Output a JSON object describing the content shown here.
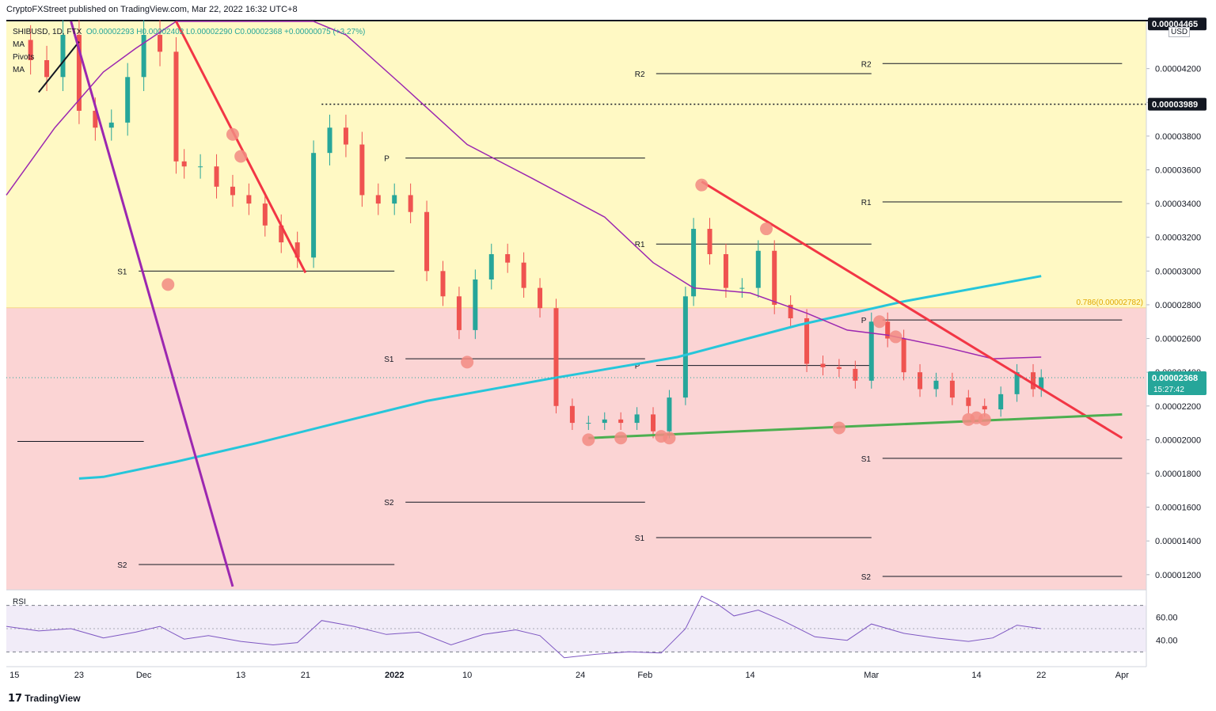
{
  "header": {
    "publisher": "CryptoFXStreet published on TradingView.com, Mar 22, 2022 16:32 UTC+8"
  },
  "legend": {
    "symbol": "SHIBUSD, 1D, FTX",
    "ohlc": "O0.00002293  H0.00002402  L0.00002290  C0.00002368  +0.00000075 (+3.27%)",
    "indicators": [
      "MA",
      "Pivots",
      "MA"
    ]
  },
  "currency": "USD",
  "rsi_label": "RSI",
  "brand": {
    "logo": "17",
    "name": "TradingView"
  },
  "colors": {
    "up": "#26a69a",
    "down": "#ef5350",
    "ma_short": "#9c27b0",
    "ma_long": "#26c6da",
    "trendline": "#f23645",
    "support": "#4caf50",
    "zone_upper": "#fff9c4",
    "zone_lower": "#fbd4d4"
  },
  "chart_data": {
    "type": "candlestick",
    "ylim": [
      1.11e-05,
      4.48e-05
    ],
    "y_ticks": [
      "0.00001200",
      "0.00001400",
      "0.00001600",
      "0.00001800",
      "0.00002000",
      "0.00002200",
      "0.00002400",
      "0.00002600",
      "0.00002800",
      "0.00003000",
      "0.00003200",
      "0.00003400",
      "0.00003600",
      "0.00003800",
      "0.00004000",
      "0.00004200"
    ],
    "x_ticks": [
      "15",
      "23",
      "Dec",
      "13",
      "21",
      "2022",
      "10",
      "24",
      "Feb",
      "14",
      "Mar",
      "14",
      "22",
      "Apr"
    ],
    "price_labels": [
      {
        "text": "0.00003989",
        "value": 3.989e-05,
        "style": "dark"
      },
      {
        "text": "0.00002368",
        "value": 2.368e-05,
        "style": "green",
        "countdown": "15:27:42"
      },
      {
        "text": "0.00004465",
        "value": 4.465e-05,
        "style": "dark"
      }
    ],
    "fib_label": "0.786(0.00002782)",
    "fib_value": 2.782e-05,
    "close_points": [
      [
        "2021-11-15",
        4.37e-05
      ],
      [
        "2021-11-17",
        4.25e-05
      ],
      [
        "2021-11-19",
        4.15e-05
      ],
      [
        "2021-11-21",
        4.4e-05
      ],
      [
        "2021-11-23",
        3.95e-05
      ],
      [
        "2021-11-25",
        3.85e-05
      ],
      [
        "2021-11-27",
        3.88e-05
      ],
      [
        "2021-11-29",
        4.15e-05
      ],
      [
        "2021-12-01",
        4.4e-05
      ],
      [
        "2021-12-03",
        4.3e-05
      ],
      [
        "2021-12-05",
        3.65e-05
      ],
      [
        "2021-12-06",
        3.62e-05
      ],
      [
        "2021-12-08",
        3.62e-05
      ],
      [
        "2021-12-10",
        3.5e-05
      ],
      [
        "2021-12-12",
        3.45e-05
      ],
      [
        "2021-12-14",
        3.4e-05
      ],
      [
        "2021-12-16",
        3.27e-05
      ],
      [
        "2021-12-18",
        3.17e-05
      ],
      [
        "2021-12-20",
        3.08e-05
      ],
      [
        "2021-12-22",
        3.7e-05
      ],
      [
        "2021-12-24",
        3.85e-05
      ],
      [
        "2021-12-26",
        3.75e-05
      ],
      [
        "2021-12-28",
        3.45e-05
      ],
      [
        "2021-12-30",
        3.4e-05
      ],
      [
        "2022-01-01",
        3.45e-05
      ],
      [
        "2022-01-03",
        3.35e-05
      ],
      [
        "2022-01-05",
        3e-05
      ],
      [
        "2022-01-07",
        2.85e-05
      ],
      [
        "2022-01-09",
        2.65e-05
      ],
      [
        "2022-01-11",
        2.95e-05
      ],
      [
        "2022-01-13",
        3.1e-05
      ],
      [
        "2022-01-15",
        3.05e-05
      ],
      [
        "2022-01-17",
        2.9e-05
      ],
      [
        "2022-01-19",
        2.78e-05
      ],
      [
        "2022-01-21",
        2.2e-05
      ],
      [
        "2022-01-23",
        2.1e-05
      ],
      [
        "2022-01-25",
        2.1e-05
      ],
      [
        "2022-01-27",
        2.12e-05
      ],
      [
        "2022-01-29",
        2.1e-05
      ],
      [
        "2022-01-31",
        2.15e-05
      ],
      [
        "2022-02-02",
        2.05e-05
      ],
      [
        "2022-02-04",
        2.25e-05
      ],
      [
        "2022-02-06",
        2.85e-05
      ],
      [
        "2022-02-07",
        3.25e-05
      ],
      [
        "2022-02-09",
        3.1e-05
      ],
      [
        "2022-02-11",
        2.9e-05
      ],
      [
        "2022-02-13",
        2.9e-05
      ],
      [
        "2022-02-15",
        3.12e-05
      ],
      [
        "2022-02-17",
        2.8e-05
      ],
      [
        "2022-02-19",
        2.72e-05
      ],
      [
        "2022-02-21",
        2.45e-05
      ],
      [
        "2022-02-23",
        2.43e-05
      ],
      [
        "2022-02-25",
        2.42e-05
      ],
      [
        "2022-02-27",
        2.35e-05
      ],
      [
        "2022-03-01",
        2.7e-05
      ],
      [
        "2022-03-03",
        2.6e-05
      ],
      [
        "2022-03-05",
        2.4e-05
      ],
      [
        "2022-03-07",
        2.3e-05
      ],
      [
        "2022-03-09",
        2.35e-05
      ],
      [
        "2022-03-11",
        2.25e-05
      ],
      [
        "2022-03-13",
        2.2e-05
      ],
      [
        "2022-03-15",
        2.18e-05
      ],
      [
        "2022-03-17",
        2.27e-05
      ],
      [
        "2022-03-19",
        2.4e-05
      ],
      [
        "2022-03-21",
        2.3e-05
      ],
      [
        "2022-03-22",
        2.37e-05
      ]
    ],
    "ma_short": [
      [
        "2021-11-14",
        3.45e-05
      ],
      [
        "2021-11-20",
        3.85e-05
      ],
      [
        "2021-11-26",
        4.18e-05
      ],
      [
        "2021-11-30",
        4.32e-05
      ],
      [
        "2021-12-05",
        4.48e-05
      ],
      [
        "2021-12-22",
        4.48e-05
      ],
      [
        "2021-12-26",
        4.4e-05
      ],
      [
        "2022-01-02",
        4.1e-05
      ],
      [
        "2022-01-10",
        3.75e-05
      ],
      [
        "2022-01-18",
        3.55e-05
      ],
      [
        "2022-01-27",
        3.32e-05
      ],
      [
        "2022-02-02",
        3.05e-05
      ],
      [
        "2022-02-07",
        2.9e-05
      ],
      [
        "2022-02-14",
        2.87e-05
      ],
      [
        "2022-02-21",
        2.75e-05
      ],
      [
        "2022-02-26",
        2.65e-05
      ],
      [
        "2022-03-03",
        2.62e-05
      ],
      [
        "2022-03-10",
        2.55e-05
      ],
      [
        "2022-03-16",
        2.48e-05
      ],
      [
        "2022-03-22",
        2.49e-05
      ]
    ],
    "ma_long": [
      [
        "2021-11-23",
        1.77e-05
      ],
      [
        "2021-11-26",
        1.78e-05
      ],
      [
        "2021-12-05",
        1.87e-05
      ],
      [
        "2021-12-15",
        1.98e-05
      ],
      [
        "2021-12-25",
        2.1e-05
      ],
      [
        "2022-01-05",
        2.23e-05
      ],
      [
        "2022-01-20",
        2.36e-05
      ],
      [
        "2022-02-05",
        2.49e-05
      ],
      [
        "2022-02-20",
        2.68e-05
      ],
      [
        "2022-03-05",
        2.82e-05
      ],
      [
        "2022-03-22",
        2.97e-05
      ]
    ],
    "trendlines": [
      {
        "name": "black-trendline",
        "color": "#131722",
        "points": [
          [
            "2021-11-18",
            4.06e-05
          ],
          [
            "2021-11-23",
            4.36e-05
          ]
        ]
      },
      {
        "name": "purple-trendline",
        "color": "#9c27b0",
        "points": [
          [
            "2021-11-22",
            4.48e-05
          ],
          [
            "2021-12-12",
            1.13e-05
          ]
        ]
      },
      {
        "name": "red-trendline-1",
        "color": "#f23645",
        "points": [
          [
            "2021-12-05",
            4.48e-05
          ],
          [
            "2021-12-21",
            2.99e-05
          ]
        ]
      },
      {
        "name": "red-trendline-2",
        "color": "#f23645",
        "points": [
          [
            "2022-02-08",
            3.53e-05
          ],
          [
            "2022-04-01",
            2.01e-05
          ]
        ]
      },
      {
        "name": "green-support",
        "color": "#4caf50",
        "points": [
          [
            "2022-01-25",
            2.01e-05
          ],
          [
            "2022-04-01",
            2.15e-05
          ]
        ]
      }
    ],
    "pivot_levels": [
      {
        "label": "S1",
        "value": 3e-05,
        "x_range": [
          "2021-11-29",
          "2022-01-01"
        ]
      },
      {
        "label": "",
        "value": 1.99e-05,
        "x_range": [
          "2021-11-14",
          "2021-12-01"
        ]
      },
      {
        "label": "S2",
        "value": 1.26e-05,
        "x_range": [
          "2021-11-29",
          "2022-01-01"
        ]
      },
      {
        "label": "P",
        "value": 3.67e-05,
        "x_range": [
          "2022-01-01",
          "2022-02-01"
        ]
      },
      {
        "label": "S1",
        "value": 2.48e-05,
        "x_range": [
          "2022-01-01",
          "2022-02-01"
        ]
      },
      {
        "label": "S2",
        "value": 1.63e-05,
        "x_range": [
          "2022-01-01",
          "2022-02-01"
        ]
      },
      {
        "label": "R2",
        "value": 4.17e-05,
        "x_range": [
          "2022-02-01",
          "2022-03-01"
        ]
      },
      {
        "label": "R1",
        "value": 3.16e-05,
        "x_range": [
          "2022-02-01",
          "2022-03-01"
        ]
      },
      {
        "label": "P",
        "value": 2.44e-05,
        "x_range": [
          "2022-02-01",
          "2022-03-01"
        ]
      },
      {
        "label": "S1",
        "value": 1.42e-05,
        "x_range": [
          "2022-02-01",
          "2022-03-01"
        ]
      },
      {
        "label": "R2",
        "value": 4.23e-05,
        "x_range": [
          "2022-03-01",
          "2022-04-01"
        ]
      },
      {
        "label": "R1",
        "value": 3.41e-05,
        "x_range": [
          "2022-03-01",
          "2022-04-01"
        ]
      },
      {
        "label": "P",
        "value": 2.71e-05,
        "x_range": [
          "2022-03-01",
          "2022-04-01"
        ]
      },
      {
        "label": "S1",
        "value": 1.89e-05,
        "x_range": [
          "2022-03-01",
          "2022-04-01"
        ]
      },
      {
        "label": "S2",
        "value": 1.19e-05,
        "x_range": [
          "2022-03-01",
          "2022-04-01"
        ]
      }
    ],
    "dotted_level": {
      "value": 3.989e-05,
      "from": "2021-12-23"
    },
    "touch_markers": [
      [
        "2021-12-04",
        2.92e-05
      ],
      [
        "2021-12-12",
        3.81e-05
      ],
      [
        "2021-12-13",
        3.68e-05
      ],
      [
        "2022-01-10",
        2.46e-05
      ],
      [
        "2022-01-25",
        2e-05
      ],
      [
        "2022-01-29",
        2.01e-05
      ],
      [
        "2022-02-03",
        2.02e-05
      ],
      [
        "2022-02-04",
        2.01e-05
      ],
      [
        "2022-02-08",
        3.51e-05
      ],
      [
        "2022-02-16",
        3.25e-05
      ],
      [
        "2022-02-25",
        2.07e-05
      ],
      [
        "2022-03-02",
        2.7e-05
      ],
      [
        "2022-03-04",
        2.61e-05
      ],
      [
        "2022-03-13",
        2.12e-05
      ],
      [
        "2022-03-14",
        2.13e-05
      ],
      [
        "2022-03-15",
        2.12e-05
      ]
    ],
    "rsi": {
      "ticks": [
        "60.00",
        "40.00"
      ],
      "ylim": [
        20,
        80
      ],
      "points": [
        [
          "2021-11-14",
          52
        ],
        [
          "2021-11-18",
          48
        ],
        [
          "2021-11-22",
          50
        ],
        [
          "2021-11-26",
          42
        ],
        [
          "2021-11-30",
          47
        ],
        [
          "2021-12-03",
          52
        ],
        [
          "2021-12-06",
          41
        ],
        [
          "2021-12-09",
          44
        ],
        [
          "2021-12-13",
          39
        ],
        [
          "2021-12-17",
          36
        ],
        [
          "2021-12-20",
          38
        ],
        [
          "2021-12-23",
          57
        ],
        [
          "2021-12-27",
          52
        ],
        [
          "2021-12-31",
          45
        ],
        [
          "2022-01-04",
          47
        ],
        [
          "2022-01-08",
          36
        ],
        [
          "2022-01-12",
          45
        ],
        [
          "2022-01-16",
          49
        ],
        [
          "2022-01-19",
          44
        ],
        [
          "2022-01-22",
          25
        ],
        [
          "2022-01-26",
          28
        ],
        [
          "2022-01-30",
          30
        ],
        [
          "2022-02-03",
          29
        ],
        [
          "2022-02-06",
          50
        ],
        [
          "2022-02-08",
          78
        ],
        [
          "2022-02-10",
          71
        ],
        [
          "2022-02-12",
          61
        ],
        [
          "2022-02-15",
          66
        ],
        [
          "2022-02-18",
          57
        ],
        [
          "2022-02-22",
          43
        ],
        [
          "2022-02-26",
          40
        ],
        [
          "2022-03-01",
          54
        ],
        [
          "2022-03-05",
          46
        ],
        [
          "2022-03-09",
          42
        ],
        [
          "2022-03-13",
          39
        ],
        [
          "2022-03-16",
          42
        ],
        [
          "2022-03-19",
          53
        ],
        [
          "2022-03-22",
          50
        ]
      ]
    }
  }
}
